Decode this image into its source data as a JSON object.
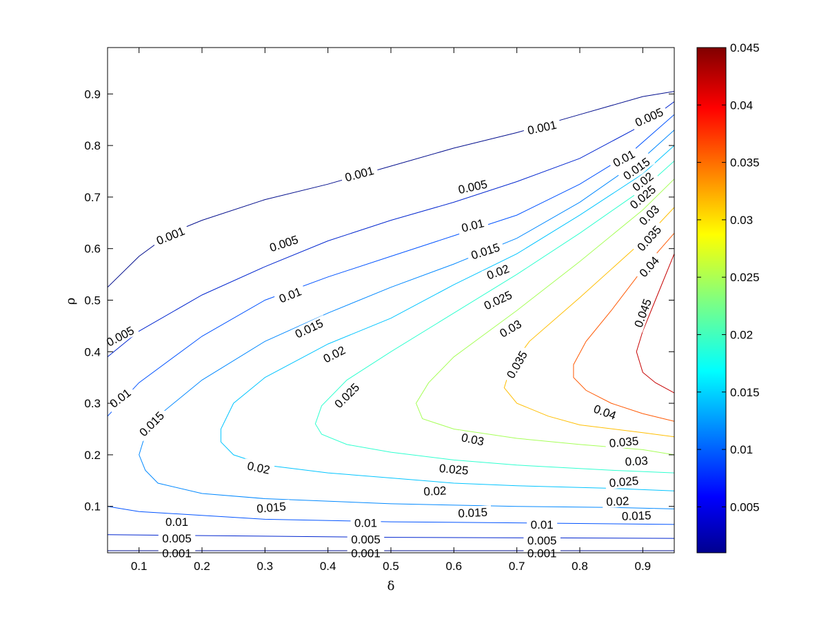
{
  "chart_data": {
    "type": "contour",
    "title": "",
    "xlabel": "δ",
    "ylabel": "ρ",
    "xlim": [
      0.05,
      0.95
    ],
    "ylim": [
      0.01,
      0.99
    ],
    "xticks": [
      "0.1",
      "0.2",
      "0.3",
      "0.4",
      "0.5",
      "0.6",
      "0.7",
      "0.8",
      "0.9"
    ],
    "yticks": [
      "0.1",
      "0.2",
      "0.3",
      "0.4",
      "0.5",
      "0.6",
      "0.7",
      "0.8",
      "0.9"
    ],
    "colorbar": {
      "range": [
        0.001,
        0.045
      ],
      "ticks": [
        "0.005",
        "0.01",
        "0.015",
        "0.02",
        "0.025",
        "0.03",
        "0.035",
        "0.04",
        "0.045"
      ],
      "colormap": "jet"
    },
    "levels": [
      {
        "value": 0.001,
        "color": "#000c8c",
        "upper": [
          [
            0.05,
            0.525
          ],
          [
            0.1,
            0.585
          ],
          [
            0.15,
            0.63
          ],
          [
            0.2,
            0.655
          ],
          [
            0.3,
            0.695
          ],
          [
            0.4,
            0.725
          ],
          [
            0.5,
            0.76
          ],
          [
            0.6,
            0.795
          ],
          [
            0.7,
            0.825
          ],
          [
            0.8,
            0.86
          ],
          [
            0.9,
            0.895
          ],
          [
            0.95,
            0.905
          ]
        ],
        "lower": [
          [
            0.05,
            0.014
          ],
          [
            0.95,
            0.014
          ]
        ],
        "labels": [
          {
            "text": "0.001",
            "x": 0.15,
            "y": 0.625,
            "angle": -22
          },
          {
            "text": "0.001",
            "x": 0.45,
            "y": 0.745,
            "angle": -15
          },
          {
            "text": "0.001",
            "x": 0.74,
            "y": 0.835,
            "angle": -12
          },
          {
            "text": "0.001",
            "x": 0.16,
            "y": 0.009,
            "angle": 0
          },
          {
            "text": "0.001",
            "x": 0.46,
            "y": 0.009,
            "angle": 0
          },
          {
            "text": "0.001",
            "x": 0.74,
            "y": 0.009,
            "angle": 0
          }
        ]
      },
      {
        "value": 0.005,
        "color": "#0025cf",
        "upper": [
          [
            0.05,
            0.39
          ],
          [
            0.1,
            0.44
          ],
          [
            0.2,
            0.51
          ],
          [
            0.3,
            0.565
          ],
          [
            0.4,
            0.615
          ],
          [
            0.5,
            0.655
          ],
          [
            0.6,
            0.69
          ],
          [
            0.7,
            0.73
          ],
          [
            0.8,
            0.775
          ],
          [
            0.9,
            0.84
          ],
          [
            0.95,
            0.885
          ]
        ],
        "lower": [
          [
            0.05,
            0.045
          ],
          [
            0.5,
            0.04
          ],
          [
            0.95,
            0.038
          ]
        ],
        "labels": [
          {
            "text": "0.005",
            "x": 0.07,
            "y": 0.43,
            "angle": -28
          },
          {
            "text": "0.005",
            "x": 0.33,
            "y": 0.61,
            "angle": -18
          },
          {
            "text": "0.005",
            "x": 0.63,
            "y": 0.72,
            "angle": -12
          },
          {
            "text": "0.005",
            "x": 0.91,
            "y": 0.855,
            "angle": -24
          },
          {
            "text": "0.005",
            "x": 0.16,
            "y": 0.038,
            "angle": 0
          },
          {
            "text": "0.005",
            "x": 0.46,
            "y": 0.036,
            "angle": 0
          },
          {
            "text": "0.005",
            "x": 0.74,
            "y": 0.034,
            "angle": 0
          }
        ]
      },
      {
        "value": 0.01,
        "color": "#0052ff",
        "upper": [
          [
            0.05,
            0.275
          ],
          [
            0.1,
            0.34
          ],
          [
            0.2,
            0.43
          ],
          [
            0.3,
            0.5
          ],
          [
            0.4,
            0.545
          ],
          [
            0.5,
            0.585
          ],
          [
            0.6,
            0.625
          ],
          [
            0.7,
            0.665
          ],
          [
            0.8,
            0.725
          ],
          [
            0.88,
            0.785
          ],
          [
            0.95,
            0.86
          ]
        ],
        "lower": [
          [
            0.05,
            0.1
          ],
          [
            0.1,
            0.09
          ],
          [
            0.3,
            0.075
          ],
          [
            0.5,
            0.07
          ],
          [
            0.7,
            0.068
          ],
          [
            0.95,
            0.065
          ]
        ],
        "labels": [
          {
            "text": "0.01",
            "x": 0.07,
            "y": 0.31,
            "angle": -38
          },
          {
            "text": "0.01",
            "x": 0.34,
            "y": 0.51,
            "angle": -22
          },
          {
            "text": "0.01",
            "x": 0.63,
            "y": 0.645,
            "angle": -14
          },
          {
            "text": "0.01",
            "x": 0.87,
            "y": 0.775,
            "angle": -28
          },
          {
            "text": "0.01",
            "x": 0.16,
            "y": 0.07,
            "angle": 0
          },
          {
            "text": "0.01",
            "x": 0.46,
            "y": 0.068,
            "angle": 0
          },
          {
            "text": "0.01",
            "x": 0.74,
            "y": 0.065,
            "angle": 0
          }
        ]
      },
      {
        "value": 0.015,
        "color": "#0088ff",
        "upper": [
          [
            0.95,
            0.83
          ],
          [
            0.9,
            0.775
          ],
          [
            0.8,
            0.69
          ],
          [
            0.7,
            0.62
          ],
          [
            0.6,
            0.57
          ],
          [
            0.5,
            0.525
          ],
          [
            0.4,
            0.475
          ],
          [
            0.3,
            0.42
          ],
          [
            0.2,
            0.345
          ],
          [
            0.14,
            0.285
          ],
          [
            0.11,
            0.24
          ],
          [
            0.1,
            0.2
          ],
          [
            0.11,
            0.17
          ],
          [
            0.13,
            0.145
          ],
          [
            0.2,
            0.125
          ],
          [
            0.3,
            0.115
          ],
          [
            0.5,
            0.105
          ],
          [
            0.7,
            0.1
          ],
          [
            0.85,
            0.098
          ],
          [
            0.95,
            0.095
          ]
        ],
        "labels": [
          {
            "text": "0.015",
            "x": 0.12,
            "y": 0.26,
            "angle": -45
          },
          {
            "text": "0.015",
            "x": 0.37,
            "y": 0.445,
            "angle": -25
          },
          {
            "text": "0.015",
            "x": 0.65,
            "y": 0.595,
            "angle": -18
          },
          {
            "text": "0.015",
            "x": 0.89,
            "y": 0.755,
            "angle": -35
          },
          {
            "text": "0.015",
            "x": 0.31,
            "y": 0.098,
            "angle": -5
          },
          {
            "text": "0.015",
            "x": 0.63,
            "y": 0.088,
            "angle": -3
          },
          {
            "text": "0.015",
            "x": 0.89,
            "y": 0.082,
            "angle": -2
          }
        ]
      },
      {
        "value": 0.02,
        "color": "#00c4ff",
        "upper": [
          [
            0.95,
            0.8
          ],
          [
            0.9,
            0.745
          ],
          [
            0.8,
            0.665
          ],
          [
            0.7,
            0.59
          ],
          [
            0.6,
            0.53
          ],
          [
            0.5,
            0.465
          ],
          [
            0.4,
            0.415
          ],
          [
            0.3,
            0.35
          ],
          [
            0.25,
            0.3
          ],
          [
            0.23,
            0.25
          ],
          [
            0.23,
            0.225
          ],
          [
            0.25,
            0.2
          ],
          [
            0.3,
            0.18
          ],
          [
            0.4,
            0.165
          ],
          [
            0.5,
            0.155
          ],
          [
            0.6,
            0.145
          ],
          [
            0.7,
            0.14
          ],
          [
            0.85,
            0.135
          ],
          [
            0.95,
            0.13
          ]
        ],
        "labels": [
          {
            "text": "0.02",
            "x": 0.41,
            "y": 0.395,
            "angle": -27
          },
          {
            "text": "0.02",
            "x": 0.67,
            "y": 0.555,
            "angle": -20
          },
          {
            "text": "0.02",
            "x": 0.9,
            "y": 0.73,
            "angle": -38
          },
          {
            "text": "0.02",
            "x": 0.29,
            "y": 0.175,
            "angle": 12
          },
          {
            "text": "0.02",
            "x": 0.57,
            "y": 0.13,
            "angle": -3
          },
          {
            "text": "0.02",
            "x": 0.86,
            "y": 0.11,
            "angle": -3
          }
        ]
      },
      {
        "value": 0.025,
        "color": "#2effcf",
        "upper": [
          [
            0.95,
            0.77
          ],
          [
            0.9,
            0.715
          ],
          [
            0.8,
            0.63
          ],
          [
            0.7,
            0.55
          ],
          [
            0.6,
            0.475
          ],
          [
            0.5,
            0.4
          ],
          [
            0.43,
            0.345
          ],
          [
            0.39,
            0.295
          ],
          [
            0.38,
            0.26
          ],
          [
            0.39,
            0.24
          ],
          [
            0.43,
            0.22
          ],
          [
            0.5,
            0.205
          ],
          [
            0.6,
            0.19
          ],
          [
            0.7,
            0.18
          ],
          [
            0.85,
            0.17
          ],
          [
            0.95,
            0.165
          ]
        ],
        "labels": [
          {
            "text": "0.025",
            "x": 0.43,
            "y": 0.315,
            "angle": -45
          },
          {
            "text": "0.025",
            "x": 0.67,
            "y": 0.5,
            "angle": -25
          },
          {
            "text": "0.025",
            "x": 0.9,
            "y": 0.7,
            "angle": -40
          },
          {
            "text": "0.025",
            "x": 0.6,
            "y": 0.172,
            "angle": 5
          },
          {
            "text": "0.025",
            "x": 0.87,
            "y": 0.148,
            "angle": -5
          }
        ]
      },
      {
        "value": 0.03,
        "color": "#a6ff57",
        "upper": [
          [
            0.95,
            0.735
          ],
          [
            0.9,
            0.675
          ],
          [
            0.8,
            0.575
          ],
          [
            0.7,
            0.48
          ],
          [
            0.6,
            0.39
          ],
          [
            0.56,
            0.34
          ],
          [
            0.54,
            0.3
          ],
          [
            0.55,
            0.27
          ],
          [
            0.6,
            0.25
          ],
          [
            0.7,
            0.232
          ],
          [
            0.8,
            0.22
          ],
          [
            0.9,
            0.21
          ],
          [
            0.95,
            0.2
          ]
        ],
        "labels": [
          {
            "text": "0.03",
            "x": 0.69,
            "y": 0.445,
            "angle": -30
          },
          {
            "text": "0.03",
            "x": 0.91,
            "y": 0.665,
            "angle": -45
          },
          {
            "text": "0.03",
            "x": 0.63,
            "y": 0.23,
            "angle": 12
          },
          {
            "text": "0.03",
            "x": 0.89,
            "y": 0.188,
            "angle": -3
          }
        ]
      },
      {
        "value": 0.035,
        "color": "#ffbe00",
        "upper": [
          [
            0.95,
            0.68
          ],
          [
            0.9,
            0.615
          ],
          [
            0.8,
            0.505
          ],
          [
            0.72,
            0.42
          ],
          [
            0.69,
            0.37
          ],
          [
            0.68,
            0.33
          ],
          [
            0.7,
            0.3
          ],
          [
            0.75,
            0.275
          ],
          [
            0.8,
            0.258
          ],
          [
            0.9,
            0.243
          ],
          [
            0.95,
            0.235
          ]
        ],
        "labels": [
          {
            "text": "0.035",
            "x": 0.7,
            "y": 0.375,
            "angle": -60
          },
          {
            "text": "0.035",
            "x": 0.91,
            "y": 0.62,
            "angle": -48
          },
          {
            "text": "0.035",
            "x": 0.87,
            "y": 0.225,
            "angle": -5
          }
        ]
      },
      {
        "value": 0.04,
        "color": "#ff5700",
        "upper": [
          [
            0.95,
            0.63
          ],
          [
            0.9,
            0.56
          ],
          [
            0.85,
            0.48
          ],
          [
            0.81,
            0.42
          ],
          [
            0.79,
            0.375
          ],
          [
            0.79,
            0.35
          ],
          [
            0.81,
            0.325
          ],
          [
            0.85,
            0.3
          ],
          [
            0.9,
            0.28
          ],
          [
            0.95,
            0.265
          ]
        ],
        "labels": [
          {
            "text": "0.04",
            "x": 0.91,
            "y": 0.565,
            "angle": -48
          },
          {
            "text": "0.04",
            "x": 0.84,
            "y": 0.283,
            "angle": 20
          }
        ]
      },
      {
        "value": 0.045,
        "color": "#c60000",
        "upper": [
          [
            0.95,
            0.59
          ],
          [
            0.92,
            0.5
          ],
          [
            0.9,
            0.44
          ],
          [
            0.89,
            0.4
          ],
          [
            0.9,
            0.36
          ],
          [
            0.92,
            0.34
          ],
          [
            0.95,
            0.32
          ]
        ],
        "labels": [
          {
            "text": "0.045",
            "x": 0.9,
            "y": 0.475,
            "angle": -70
          }
        ]
      }
    ]
  }
}
